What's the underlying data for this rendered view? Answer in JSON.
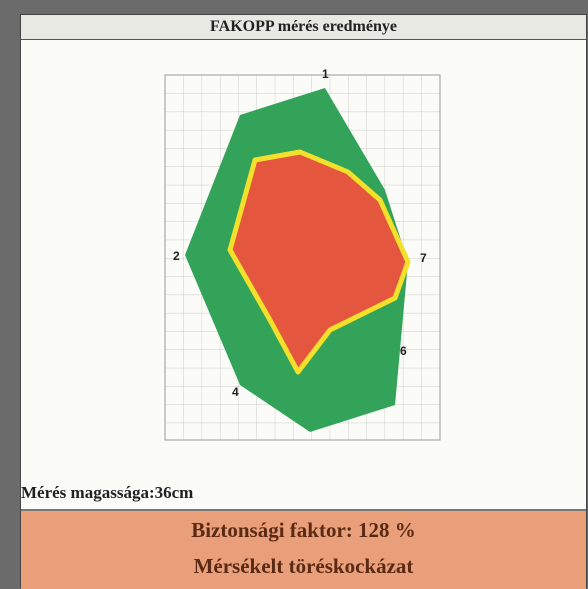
{
  "header": {
    "title": "FAKOPP mérés eredménye"
  },
  "sensors": [
    {
      "label": "1"
    },
    {
      "label": "2"
    },
    {
      "label": "4"
    },
    {
      "label": "6"
    },
    {
      "label": "7"
    }
  ],
  "measurement": {
    "height": "Mérés magassága:36cm"
  },
  "result": {
    "safety_factor": "Biztonsági faktor: 128 %",
    "risk": "Mérsékelt töréskockázat"
  }
}
